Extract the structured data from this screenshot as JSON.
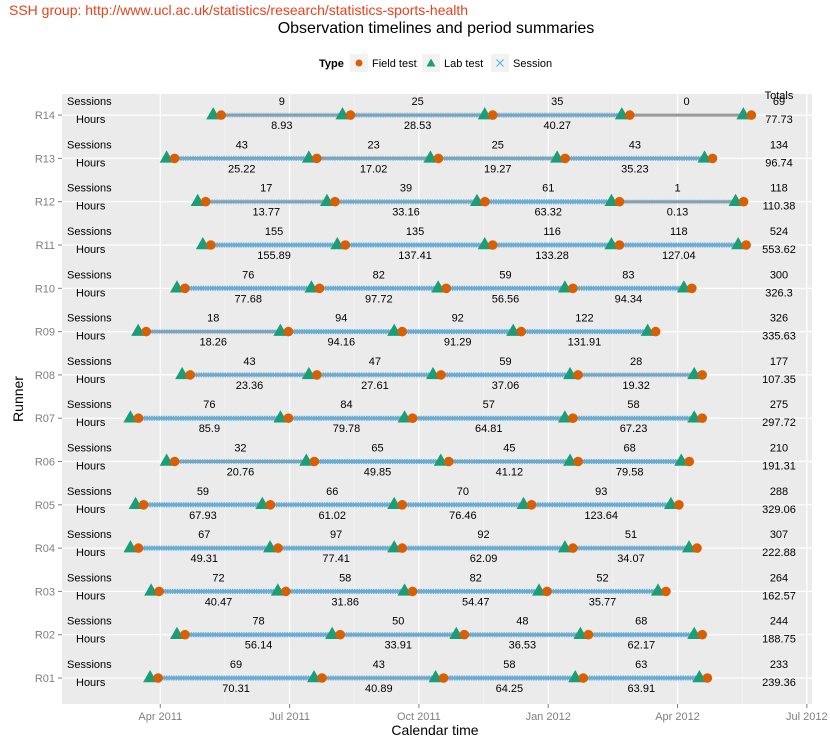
{
  "watermark": "SSH group: http://www.ucl.ac.uk/statistics/research/statistics-sports-health",
  "chart_data": {
    "type": "timeline",
    "title": "Observation timelines and period summaries",
    "xlabel": "Calendar time",
    "ylabel": "Runner",
    "legend": {
      "title": "Type",
      "position": "top",
      "items": [
        {
          "label": "Field test",
          "symbol": "circle",
          "color": "#d95f02"
        },
        {
          "label": "Lab test",
          "symbol": "triangle",
          "color": "#1b9e77"
        },
        {
          "label": "Session",
          "symbol": "cross",
          "color": "#56b4e9"
        }
      ]
    },
    "x_ticks": [
      "Apr 2011",
      "Jul 2011",
      "Oct 2011",
      "Jan 2012",
      "Apr 2012",
      "Jul 2012"
    ],
    "x_tick_values": [
      2011.25,
      2011.5,
      2011.75,
      2012.0,
      2012.25,
      2012.5
    ],
    "xlim": [
      2011.06,
      2012.51
    ],
    "row_labels": {
      "sessions": "Sessions",
      "hours": "Hours"
    },
    "totals_header": "Totals",
    "runners": [
      {
        "id": "R01",
        "tests": [
          2011.238,
          2011.555,
          2011.79,
          2012.06,
          2012.3
        ],
        "periods": [
          {
            "sessions": "69",
            "hours": "70.31"
          },
          {
            "sessions": "43",
            "hours": "40.89"
          },
          {
            "sessions": "58",
            "hours": "64.25"
          },
          {
            "sessions": "63",
            "hours": "63.91"
          }
        ],
        "total_sessions": "233",
        "total_hours": "239.36"
      },
      {
        "id": "R02",
        "tests": [
          2011.29,
          2011.59,
          2011.83,
          2012.07,
          2012.29
        ],
        "periods": [
          {
            "sessions": "78",
            "hours": "56.14"
          },
          {
            "sessions": "50",
            "hours": "33.91"
          },
          {
            "sessions": "48",
            "hours": "36.53"
          },
          {
            "sessions": "68",
            "hours": "62.17"
          }
        ],
        "total_sessions": "244",
        "total_hours": "188.75"
      },
      {
        "id": "R03",
        "tests": [
          2011.24,
          2011.485,
          2011.73,
          2011.99,
          2012.22
        ],
        "periods": [
          {
            "sessions": "72",
            "hours": "40.47"
          },
          {
            "sessions": "58",
            "hours": "31.86"
          },
          {
            "sessions": "82",
            "hours": "54.47"
          },
          {
            "sessions": "52",
            "hours": "35.77"
          }
        ],
        "total_sessions": "264",
        "total_hours": "162.57"
      },
      {
        "id": "R04",
        "tests": [
          2011.2,
          2011.47,
          2011.71,
          2012.04,
          2012.28
        ],
        "periods": [
          {
            "sessions": "67",
            "hours": "49.31"
          },
          {
            "sessions": "97",
            "hours": "77.41"
          },
          {
            "sessions": "92",
            "hours": "62.09"
          },
          {
            "sessions": "51",
            "hours": "34.07"
          }
        ],
        "total_sessions": "307",
        "total_hours": "222.88"
      },
      {
        "id": "R05",
        "tests": [
          2011.21,
          2011.455,
          2011.71,
          2011.96,
          2012.245
        ],
        "periods": [
          {
            "sessions": "59",
            "hours": "67.93"
          },
          {
            "sessions": "66",
            "hours": "61.02"
          },
          {
            "sessions": "70",
            "hours": "76.46"
          },
          {
            "sessions": "93",
            "hours": "123.64"
          }
        ],
        "total_sessions": "288",
        "total_hours": "329.06"
      },
      {
        "id": "R06",
        "tests": [
          2011.27,
          2011.54,
          2011.8,
          2012.05,
          2012.265
        ],
        "periods": [
          {
            "sessions": "32",
            "hours": "20.76"
          },
          {
            "sessions": "65",
            "hours": "49.85"
          },
          {
            "sessions": "45",
            "hours": "41.12"
          },
          {
            "sessions": "68",
            "hours": "79.58"
          }
        ],
        "total_sessions": "210",
        "total_hours": "191.31"
      },
      {
        "id": "R07",
        "tests": [
          2011.2,
          2011.49,
          2011.73,
          2012.04,
          2012.29
        ],
        "periods": [
          {
            "sessions": "76",
            "hours": "85.9"
          },
          {
            "sessions": "84",
            "hours": "79.78"
          },
          {
            "sessions": "57",
            "hours": "64.81"
          },
          {
            "sessions": "58",
            "hours": "67.23"
          }
        ],
        "total_sessions": "275",
        "total_hours": "297.72"
      },
      {
        "id": "R08",
        "tests": [
          2011.3,
          2011.545,
          2011.785,
          2012.05,
          2012.29
        ],
        "periods": [
          {
            "sessions": "43",
            "hours": "23.36"
          },
          {
            "sessions": "47",
            "hours": "27.61"
          },
          {
            "sessions": "59",
            "hours": "37.06"
          },
          {
            "sessions": "28",
            "hours": "19.32"
          }
        ],
        "total_sessions": "177",
        "total_hours": "107.35"
      },
      {
        "id": "R09",
        "tests": [
          2011.215,
          2011.49,
          2011.71,
          2011.94,
          2012.2
        ],
        "periods": [
          {
            "sessions": "18",
            "hours": "18.26"
          },
          {
            "sessions": "94",
            "hours": "94.16"
          },
          {
            "sessions": "92",
            "hours": "91.29"
          },
          {
            "sessions": "122",
            "hours": "131.91"
          }
        ],
        "total_sessions": "326",
        "total_hours": "335.63"
      },
      {
        "id": "R10",
        "tests": [
          2011.29,
          2011.55,
          2011.795,
          2012.04,
          2012.27
        ],
        "periods": [
          {
            "sessions": "76",
            "hours": "77.68"
          },
          {
            "sessions": "82",
            "hours": "97.72"
          },
          {
            "sessions": "59",
            "hours": "56.56"
          },
          {
            "sessions": "83",
            "hours": "94.34"
          }
        ],
        "total_sessions": "300",
        "total_hours": "326.3"
      },
      {
        "id": "R11",
        "tests": [
          2011.34,
          2011.6,
          2011.885,
          2012.13,
          2012.375
        ],
        "periods": [
          {
            "sessions": "155",
            "hours": "155.89"
          },
          {
            "sessions": "135",
            "hours": "137.41"
          },
          {
            "sessions": "116",
            "hours": "133.28"
          },
          {
            "sessions": "118",
            "hours": "127.04"
          }
        ],
        "total_sessions": "524",
        "total_hours": "553.62"
      },
      {
        "id": "R12",
        "tests": [
          2011.33,
          2011.58,
          2011.87,
          2012.13,
          2012.37
        ],
        "periods": [
          {
            "sessions": "17",
            "hours": "13.77"
          },
          {
            "sessions": "39",
            "hours": "33.16"
          },
          {
            "sessions": "61",
            "hours": "63.32"
          },
          {
            "sessions": "1",
            "hours": "0.13"
          }
        ],
        "total_sessions": "118",
        "total_hours": "110.38"
      },
      {
        "id": "R13",
        "tests": [
          2011.27,
          2011.545,
          2011.78,
          2012.025,
          2012.31
        ],
        "periods": [
          {
            "sessions": "43",
            "hours": "25.22"
          },
          {
            "sessions": "23",
            "hours": "17.02"
          },
          {
            "sessions": "25",
            "hours": "19.27"
          },
          {
            "sessions": "43",
            "hours": "35.23"
          }
        ],
        "total_sessions": "134",
        "total_hours": "96.74"
      },
      {
        "id": "R14",
        "tests": [
          2011.36,
          2011.61,
          2011.885,
          2012.15,
          2012.385
        ],
        "periods": [
          {
            "sessions": "9",
            "hours": "8.93"
          },
          {
            "sessions": "25",
            "hours": "28.53"
          },
          {
            "sessions": "35",
            "hours": "40.27"
          },
          {
            "sessions": "0",
            "hours": ""
          }
        ],
        "total_sessions": "69",
        "total_hours": "77.73"
      }
    ]
  }
}
